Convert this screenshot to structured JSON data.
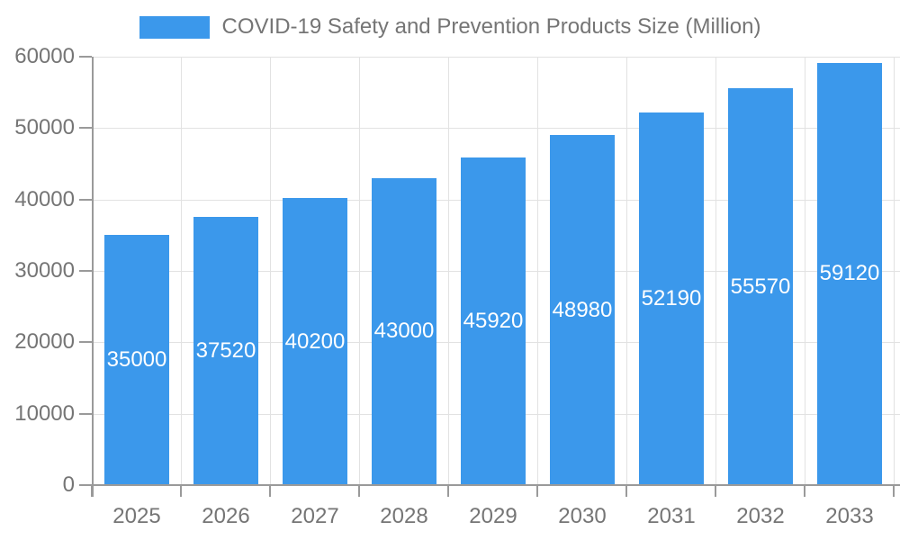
{
  "chart_data": {
    "type": "bar",
    "title": "COVID-19 Safety and Prevention Products Size (Million)",
    "legend_position": "top",
    "categories": [
      "2025",
      "2026",
      "2027",
      "2028",
      "2029",
      "2030",
      "2031",
      "2032",
      "2033"
    ],
    "series": [
      {
        "name": "COVID-19 Safety and Prevention Products Size (Million)",
        "values": [
          35000,
          37520,
          40200,
          43000,
          45920,
          48980,
          52190,
          55570,
          59120
        ]
      }
    ],
    "value_labels_shown": true,
    "xlabel": "",
    "ylabel": "",
    "ylim": [
      0,
      60000
    ],
    "yticks": [
      0,
      10000,
      20000,
      30000,
      40000,
      50000,
      60000
    ],
    "grid": true,
    "colors": {
      "bar": "#3B98EB",
      "bar_value_text": "#FFFFFF",
      "gridline": "#E2E2E2",
      "axis_line": "#9A9A9A",
      "tick_text": "#757575",
      "background": "#FFFFFF"
    }
  }
}
